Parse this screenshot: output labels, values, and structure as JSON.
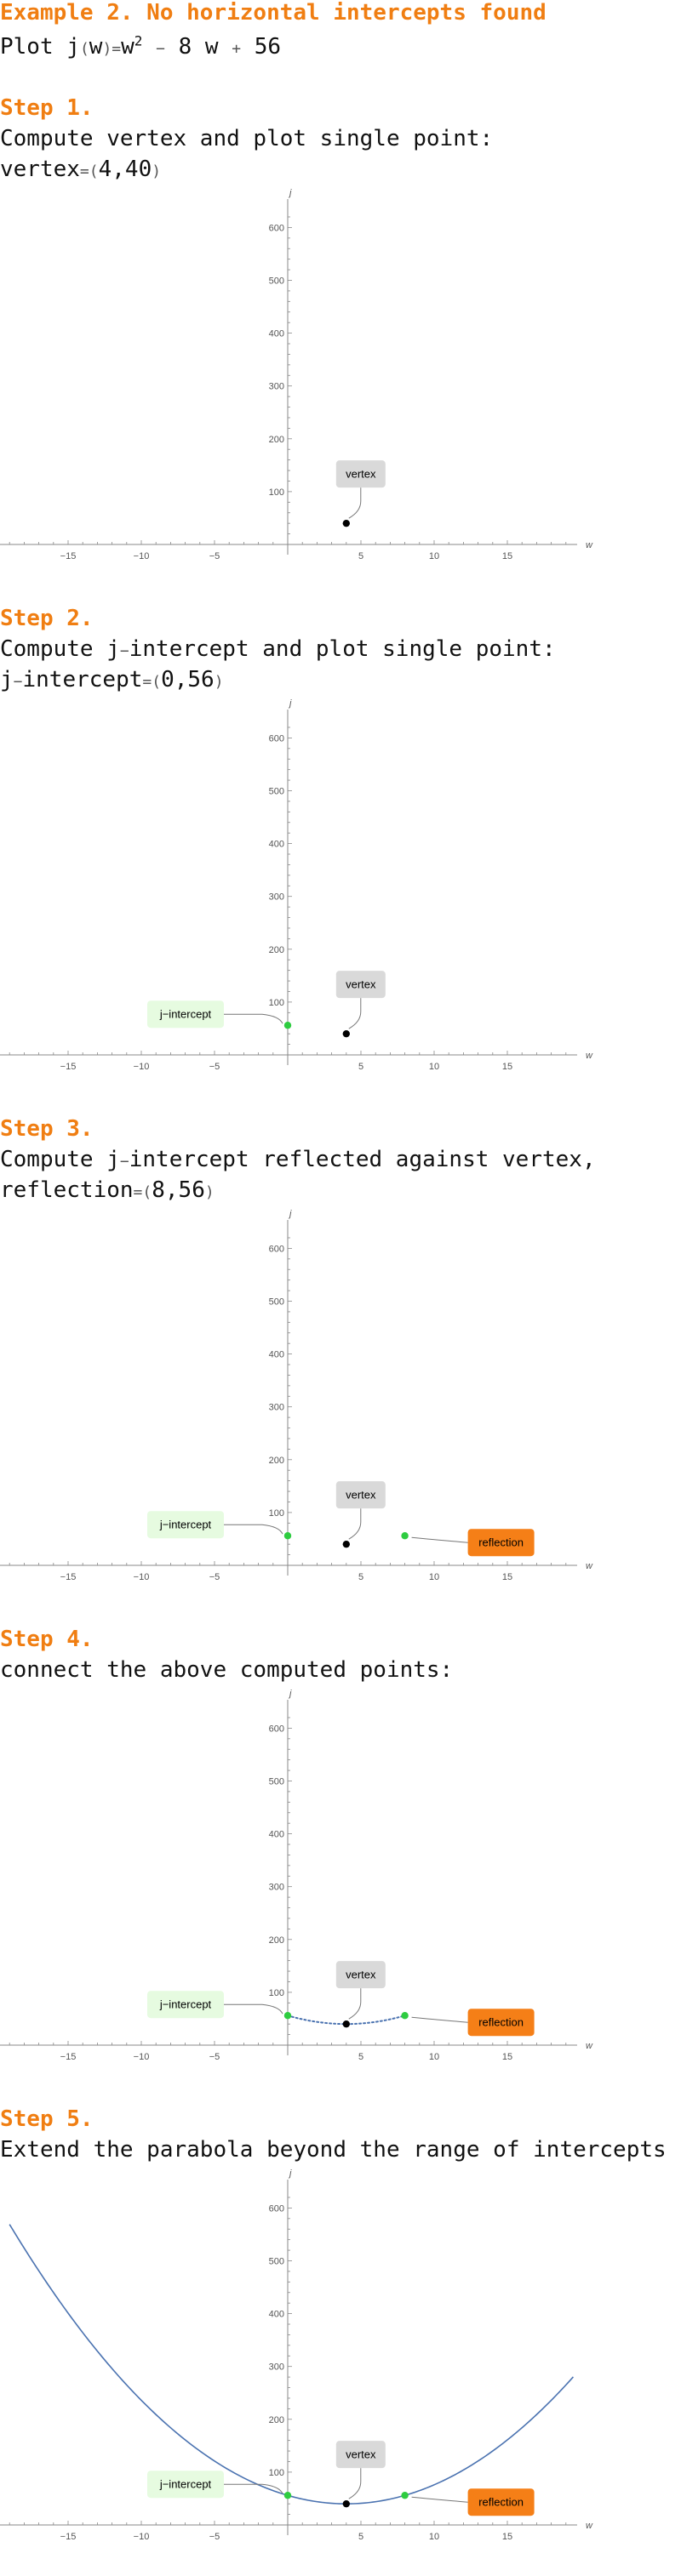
{
  "title": "Example 2. No horizontal intercepts found",
  "intro": {
    "plot_word": "Plot",
    "fn_open": "j",
    "fn_paren_open": "(",
    "fn_var": "w",
    "fn_paren_close": ")",
    "eq": "=",
    "expr_a": "w",
    "expr_exp": "2",
    "expr_minus": "−",
    "expr_b": "8 w",
    "expr_plus": "+",
    "expr_c": "56"
  },
  "steps": [
    {
      "heading": "Step 1.",
      "lines": [
        {
          "text": "Compute vertex and plot single point:"
        },
        {
          "prefix": "vertex",
          "eq": "=",
          "open": "(",
          "value": "4,40",
          "close": ")"
        }
      ]
    },
    {
      "heading": "Step 2.",
      "lines": [
        {
          "text_a": "Compute j",
          "dash": "−",
          "text_b": "intercept and plot single point:"
        },
        {
          "prefix_a": "j",
          "dash": "−",
          "prefix_b": "intercept",
          "eq": "=",
          "open": "(",
          "value": "0,56",
          "close": ")"
        }
      ]
    },
    {
      "heading": "Step 3.",
      "lines": [
        {
          "text_a": "Compute j",
          "dash": "−",
          "text_b": "intercept reflected against vertex,"
        },
        {
          "prefix": "reflection",
          "eq": "=",
          "open": "(",
          "value": "8,56",
          "close": ")"
        }
      ]
    },
    {
      "heading": "Step 4.",
      "lines": [
        {
          "text": "connect the above computed points:"
        }
      ]
    },
    {
      "heading": "Step 5.",
      "lines": [
        {
          "text": "Extend the parabola beyond the range of intercepts"
        }
      ]
    }
  ],
  "callouts": {
    "vertex": "vertex",
    "j_intercept": "j−intercept",
    "reflection": "reflection"
  },
  "colors": {
    "heading": "#f07e12",
    "vertex_box": "#d9d9d9",
    "intercept_box": "#e6fbe0",
    "reflection_box": "#f57f17",
    "point_green": "#2ecc40",
    "point_black": "#000000",
    "curve": "#4a72b0"
  },
  "chart_data": [
    {
      "type": "scatter",
      "xlabel": "w",
      "ylabel": "j",
      "xlim": [
        -19,
        19.5
      ],
      "ylim": [
        -20,
        640
      ],
      "x_ticks": [
        -15,
        -10,
        -5,
        5,
        10,
        15
      ],
      "y_ticks": [
        100,
        200,
        300,
        400,
        500,
        600
      ],
      "points": [
        {
          "name": "vertex",
          "x": 4,
          "y": 40
        }
      ],
      "curve": "none"
    },
    {
      "type": "scatter",
      "xlabel": "w",
      "ylabel": "j",
      "xlim": [
        -19,
        19.5
      ],
      "ylim": [
        -20,
        640
      ],
      "x_ticks": [
        -15,
        -10,
        -5,
        5,
        10,
        15
      ],
      "y_ticks": [
        100,
        200,
        300,
        400,
        500,
        600
      ],
      "points": [
        {
          "name": "vertex",
          "x": 4,
          "y": 40
        },
        {
          "name": "j-intercept",
          "x": 0,
          "y": 56
        }
      ],
      "curve": "none"
    },
    {
      "type": "scatter",
      "xlabel": "w",
      "ylabel": "j",
      "xlim": [
        -19,
        19.5
      ],
      "ylim": [
        -20,
        640
      ],
      "x_ticks": [
        -15,
        -10,
        -5,
        5,
        10,
        15
      ],
      "y_ticks": [
        100,
        200,
        300,
        400,
        500,
        600
      ],
      "points": [
        {
          "name": "vertex",
          "x": 4,
          "y": 40
        },
        {
          "name": "j-intercept",
          "x": 0,
          "y": 56
        },
        {
          "name": "reflection",
          "x": 8,
          "y": 56
        }
      ],
      "curve": "none"
    },
    {
      "type": "line",
      "xlabel": "w",
      "ylabel": "j",
      "xlim": [
        -19,
        19.5
      ],
      "ylim": [
        -20,
        640
      ],
      "x_ticks": [
        -15,
        -10,
        -5,
        5,
        10,
        15
      ],
      "y_ticks": [
        100,
        200,
        300,
        400,
        500,
        600
      ],
      "points": [
        {
          "name": "vertex",
          "x": 4,
          "y": 40
        },
        {
          "name": "j-intercept",
          "x": 0,
          "y": 56
        },
        {
          "name": "reflection",
          "x": 8,
          "y": 56
        }
      ],
      "curve": "dotted",
      "curve_range": [
        0,
        8
      ],
      "function": {
        "a": 1,
        "b": -8,
        "c": 56
      }
    },
    {
      "type": "line",
      "xlabel": "w",
      "ylabel": "j",
      "xlim": [
        -19,
        19.5
      ],
      "ylim": [
        -20,
        640
      ],
      "x_ticks": [
        -15,
        -10,
        -5,
        5,
        10,
        15
      ],
      "y_ticks": [
        100,
        200,
        300,
        400,
        500,
        600
      ],
      "points": [
        {
          "name": "vertex",
          "x": 4,
          "y": 40
        },
        {
          "name": "j-intercept",
          "x": 0,
          "y": 56
        },
        {
          "name": "reflection",
          "x": 8,
          "y": 56
        }
      ],
      "curve": "solid",
      "curve_range": [
        -19,
        19.5
      ],
      "function": {
        "a": 1,
        "b": -8,
        "c": 56
      }
    }
  ]
}
